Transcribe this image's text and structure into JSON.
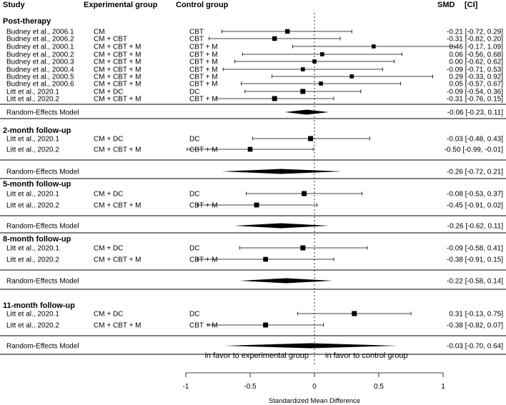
{
  "header": {
    "study": "Study",
    "experimental": "Experimental group",
    "control": "Control group",
    "smd": "SMD",
    "ci": "[CI]"
  },
  "chart_data": {
    "type": "forest",
    "xlabel": "Standardized Mean Difference",
    "xlim": [
      -1.1,
      1.1
    ],
    "xticks": [
      -1,
      -0.5,
      0,
      0.5,
      1
    ],
    "tick_labels": [
      "-1",
      "-0.5",
      "0",
      "0.5",
      "1"
    ],
    "favor_left": "in favor to experimental group",
    "favor_right": "in favor to control group",
    "sections": [
      {
        "title": "Post-therapy",
        "studies": [
          {
            "study": "Budney et al., 2006.1",
            "experimental": "CM",
            "control": "CBT",
            "smd": -0.21,
            "lo": -0.72,
            "hi": 0.29,
            "text": "-0.21 [-0.72, 0.29]"
          },
          {
            "study": "Budney et al., 2006.2",
            "experimental": "CM + CBT",
            "control": "CBT",
            "smd": -0.31,
            "lo": -0.82,
            "hi": 0.2,
            "text": "-0.31 [-0.82, 0.20]"
          },
          {
            "study": "Budney et al., 2000.1",
            "experimental": "CM + CBT + M",
            "control": "CBT + M",
            "smd": 0.46,
            "lo": -0.17,
            "hi": 1.09,
            "text": "0.46 [-0.17, 1.09]"
          },
          {
            "study": "Budney et al., 2000.2",
            "experimental": "CM + CBT + M",
            "control": "CBT + M",
            "smd": 0.06,
            "lo": -0.56,
            "hi": 0.68,
            "text": "0.06 [-0.56, 0.68]"
          },
          {
            "study": "Budney et al., 2000.3",
            "experimental": "CM + CBT + M",
            "control": "CBT + M",
            "smd": 0.0,
            "lo": -0.62,
            "hi": 0.62,
            "text": "0.00 [-0.62, 0.62]"
          },
          {
            "study": "Budney et al., 2000.4",
            "experimental": "CM + CBT + M",
            "control": "CBT + M",
            "smd": -0.09,
            "lo": -0.71,
            "hi": 0.53,
            "text": "-0.09 [-0.71, 0.53]"
          },
          {
            "study": "Budney et al., 2000.5",
            "experimental": "CM + CBT + M",
            "control": "CBT + M",
            "smd": 0.29,
            "lo": -0.33,
            "hi": 0.92,
            "text": "0.29 [-0.33, 0.92]"
          },
          {
            "study": "Budney et al., 2000.6",
            "experimental": "CM + CBT + M",
            "control": "CBT + M",
            "smd": 0.05,
            "lo": -0.57,
            "hi": 0.67,
            "text": "0.05 [-0.57, 0.67]"
          },
          {
            "study": "Litt et al., 2020.1",
            "experimental": "CM + DC",
            "control": "DC",
            "smd": -0.09,
            "lo": -0.54,
            "hi": 0.36,
            "text": "-0.09 [-0.54, 0.36]"
          },
          {
            "study": "Litt et al., 2020.2",
            "experimental": "CM + CBT + M",
            "control": "CBT + M",
            "smd": -0.31,
            "lo": -0.76,
            "hi": 0.15,
            "text": "-0.31 [-0.76, 0.15]"
          }
        ],
        "pooled": {
          "label": "Random-Effects Model",
          "smd": -0.06,
          "lo": -0.23,
          "hi": 0.11,
          "text": "-0.06 [-0.23, 0.11]"
        }
      },
      {
        "title": "2-month follow-up",
        "studies": [
          {
            "study": "Litt et al., 2020.1",
            "experimental": "CM + DC",
            "control": "DC",
            "smd": -0.03,
            "lo": -0.48,
            "hi": 0.43,
            "text": "-0.03 [-0.48, 0.43]"
          },
          {
            "study": "Litt et al., 2020.2",
            "experimental": "CM + CBT + M",
            "control": "CBT + M",
            "smd": -0.5,
            "lo": -0.99,
            "hi": -0.01,
            "text": "-0.50 [-0.99, -0.01]"
          }
        ],
        "pooled": {
          "label": "Random-Effects Model",
          "smd": -0.26,
          "lo": -0.72,
          "hi": 0.21,
          "text": "-0.26 [-0.72, 0.21]"
        }
      },
      {
        "title": "5-month follow-up",
        "studies": [
          {
            "study": "Litt et al., 2020.1",
            "experimental": "CM + DC",
            "control": "DC",
            "smd": -0.08,
            "lo": -0.53,
            "hi": 0.37,
            "text": "-0.08 [-0.53, 0.37]"
          },
          {
            "study": "Litt et al., 2020.2",
            "experimental": "CM + CBT + M",
            "control": "CBT + M",
            "smd": -0.45,
            "lo": -0.91,
            "hi": 0.02,
            "text": "-0.45 [-0.91, 0.02]"
          }
        ],
        "pooled": {
          "label": "Random-Effects Model",
          "smd": -0.26,
          "lo": -0.62,
          "hi": 0.11,
          "text": "-0.26 [-0.62, 0.11]"
        }
      },
      {
        "title": "8-month follow-up",
        "studies": [
          {
            "study": "Litt et al., 2020.1",
            "experimental": "CM + DC",
            "control": "DC",
            "smd": -0.09,
            "lo": -0.58,
            "hi": 0.41,
            "text": "-0.09 [-0.58, 0.41]"
          },
          {
            "study": "Litt et al., 2020.2",
            "experimental": "CM + CBT + M",
            "control": "CBT + M",
            "smd": -0.38,
            "lo": -0.91,
            "hi": 0.15,
            "text": "-0.38 [-0.91, 0.15]"
          }
        ],
        "pooled": {
          "label": "Random-Effects Model",
          "smd": -0.22,
          "lo": -0.58,
          "hi": 0.14,
          "text": "-0.22 [-0.58, 0.14]"
        }
      },
      {
        "title": "11-month follow-up",
        "studies": [
          {
            "study": "Litt et al., 2020.1",
            "experimental": "CM + DC",
            "control": "DC",
            "smd": 0.31,
            "lo": -0.13,
            "hi": 0.75,
            "text": "0.31 [-0.13, 0.75]"
          },
          {
            "study": "Litt et al., 2020.2",
            "experimental": "CM + CBT + M",
            "control": "CBT + M",
            "smd": -0.38,
            "lo": -0.82,
            "hi": 0.07,
            "text": "-0.38 [-0.82, 0.07]"
          }
        ],
        "pooled": {
          "label": "Random-Effects Model",
          "smd": -0.03,
          "lo": -0.7,
          "hi": 0.64,
          "text": "-0.03 [-0.70, 0.64]"
        }
      }
    ]
  }
}
